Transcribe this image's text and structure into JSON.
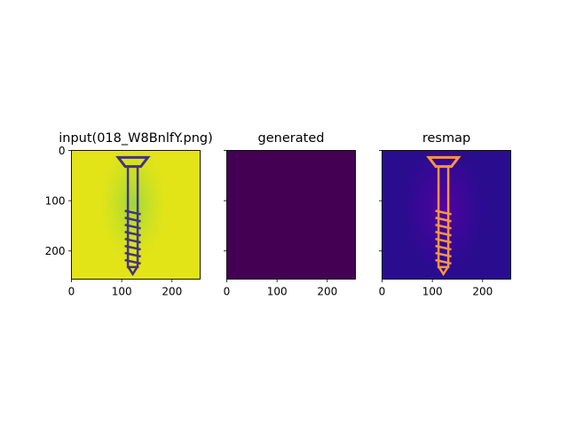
{
  "chart_data": {
    "type": "heatmap",
    "panels": [
      {
        "title": "input(018_W8BnlfY.png)",
        "colormap": "viridis",
        "image_size": [
          256,
          256
        ],
        "xlim": [
          0,
          256
        ],
        "ylim": [
          256,
          0
        ],
        "xticks": [
          0,
          100,
          200
        ],
        "yticks": [
          0,
          100,
          200
        ],
        "background_color": "#e2e418",
        "object_color": "#46327e",
        "show_yticklabels": true
      },
      {
        "title": "generated",
        "colormap": "viridis",
        "image_size": [
          256,
          256
        ],
        "xlim": [
          0,
          256
        ],
        "ylim": [
          256,
          0
        ],
        "xticks": [
          0,
          100,
          200
        ],
        "yticks": [
          0,
          100,
          200
        ],
        "background_color": "#440154",
        "show_yticklabels": false
      },
      {
        "title": "resmap",
        "colormap": "plasma",
        "image_size": [
          256,
          256
        ],
        "xlim": [
          0,
          256
        ],
        "ylim": [
          256,
          0
        ],
        "xticks": [
          0,
          100,
          200
        ],
        "yticks": [
          0,
          100,
          200
        ],
        "background_color": "#2a0c8f",
        "object_color": "#f89540",
        "show_yticklabels": false
      }
    ]
  }
}
